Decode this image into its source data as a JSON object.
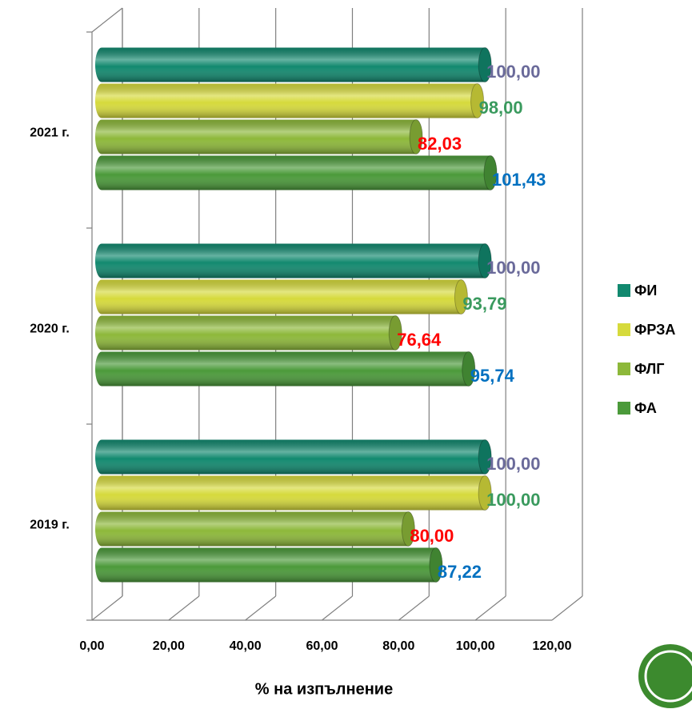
{
  "chart_data": {
    "type": "bar",
    "orientation": "horizontal",
    "style": "3d-cylinder",
    "categories": [
      "2019 г.",
      "2020 г.",
      "2021 г."
    ],
    "series": [
      {
        "name": "ФИ",
        "color": "#12896f",
        "label_color": "#6a6a9a",
        "values": [
          100,
          100,
          100
        ],
        "value_labels": [
          "100,00",
          "100,00",
          "100,00"
        ]
      },
      {
        "name": "ФРЗА",
        "color": "#d6da3c",
        "label_color": "#3a9a5e",
        "values": [
          100,
          93.79,
          98
        ],
        "value_labels": [
          "100,00",
          "93,79",
          "98,00"
        ]
      },
      {
        "name": "ФЛГ",
        "color": "#8db83a",
        "label_color": "#ff0000",
        "values": [
          80,
          76.64,
          82.03
        ],
        "value_labels": [
          "80,00",
          "76,64",
          "82,03"
        ]
      },
      {
        "name": "ФА",
        "color": "#4b9a3a",
        "label_color": "#0070c0",
        "values": [
          87.22,
          95.74,
          101.43
        ],
        "value_labels": [
          "87,22",
          "95,74",
          "101,43"
        ]
      }
    ],
    "xlabel": "% на изпълнение",
    "xlim": [
      0,
      120
    ],
    "xticks": [
      {
        "value": 0,
        "label": "0,00"
      },
      {
        "value": 20,
        "label": "20,00"
      },
      {
        "value": 40,
        "label": "40,00"
      },
      {
        "value": 60,
        "label": "60,00"
      },
      {
        "value": 80,
        "label": "80,00"
      },
      {
        "value": 100,
        "label": "100,00"
      },
      {
        "value": 120,
        "label": "120,00"
      }
    ],
    "grid": true,
    "legend": "right"
  }
}
